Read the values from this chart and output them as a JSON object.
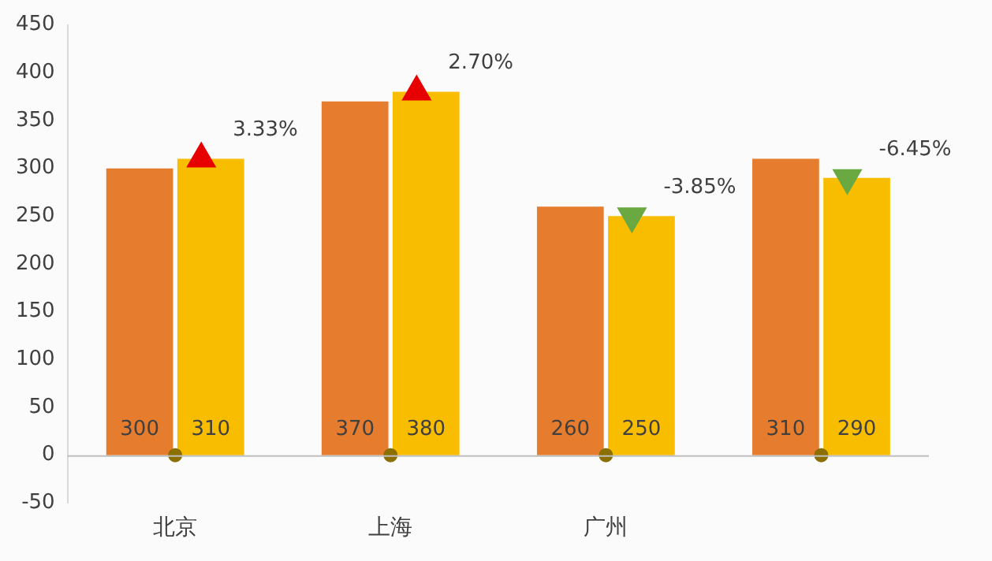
{
  "chart_data": {
    "type": "bar",
    "categories": [
      "北京",
      "上海",
      "广州",
      null
    ],
    "series": [
      {
        "color": "#e67c2e",
        "values": [
          300,
          370,
          260,
          310
        ],
        "value_labels": [
          "300",
          "370",
          "260",
          "310"
        ]
      },
      {
        "color": "#f9bd00",
        "values": [
          310,
          380,
          250,
          290
        ],
        "value_labels": [
          "310",
          "380",
          "250",
          "290"
        ]
      },
      {
        "type": "scatter",
        "marker": "triangle",
        "colors": [
          "#e60000",
          "#e60000",
          "#6aa842",
          "#6aa842"
        ],
        "values": [
          310,
          380,
          250,
          290
        ]
      },
      {
        "type": "scatter",
        "marker": "circle",
        "color": "#8b6f00",
        "values": [
          0,
          0,
          0,
          0
        ]
      }
    ],
    "annotations": [
      "3.33%",
      "2.70%",
      "-3.85%",
      "-6.45%"
    ],
    "ylim": [
      -50,
      450
    ],
    "yticks": [
      -50,
      0,
      50,
      100,
      150,
      200,
      250,
      300,
      350,
      400,
      450
    ]
  }
}
